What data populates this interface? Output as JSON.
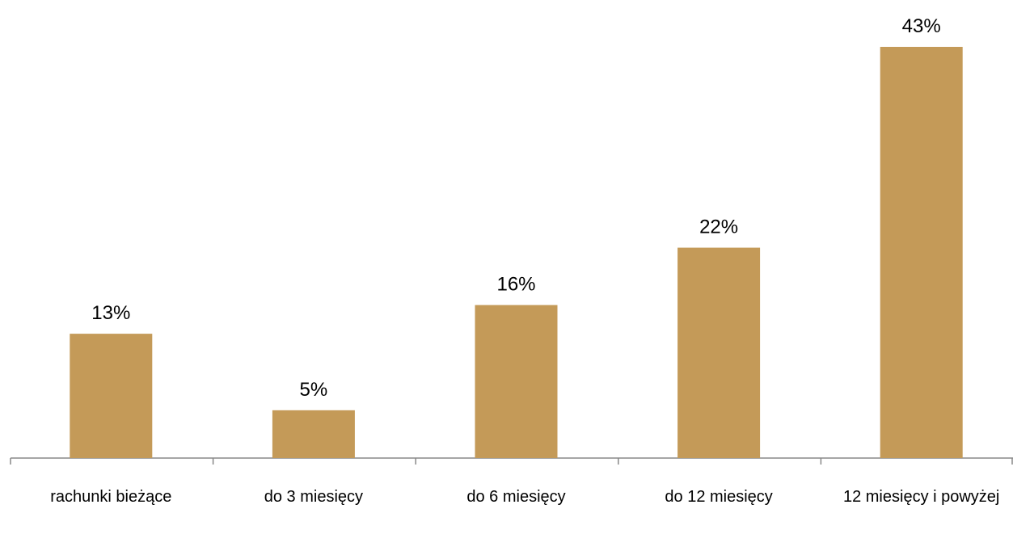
{
  "chart_data": {
    "type": "bar",
    "categories": [
      "rachunki bieżące",
      "do 3 miesięcy",
      "do 6 miesięcy",
      "do 12 miesięcy",
      "12 miesięcy i powyżej"
    ],
    "values": [
      13,
      5,
      16,
      22,
      43
    ],
    "value_labels": [
      "13%",
      "5%",
      "16%",
      "22%",
      "43%"
    ],
    "color": "#c49a58"
  }
}
